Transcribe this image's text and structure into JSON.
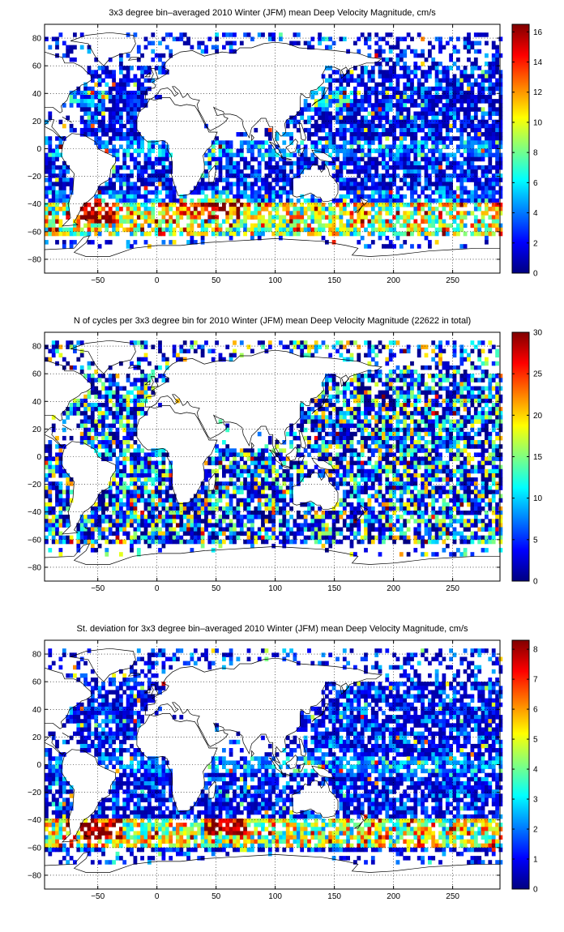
{
  "chart_data": [
    {
      "type": "heatmap",
      "title": "3x3 degree bin–averaged 2010 Winter (JFM) mean Deep Velocity Magnitude, cm/s",
      "xlim": [
        -95,
        290
      ],
      "ylim": [
        -90,
        90
      ],
      "x_ticks": [
        -50,
        0,
        50,
        100,
        150,
        200,
        250
      ],
      "y_ticks": [
        80,
        60,
        40,
        20,
        0,
        -20,
        -40,
        -60,
        -80
      ],
      "grid": true,
      "colormap": "jet",
      "colorbar": {
        "min": 0,
        "max": 16.5,
        "ticks": [
          0,
          2,
          4,
          6,
          8,
          10,
          12,
          14,
          16
        ]
      },
      "bin_size_deg": 3,
      "basemap": "world coastlines",
      "pattern": "velocity"
    },
    {
      "type": "heatmap",
      "title": "N of cycles per 3x3 degree bin for 2010 Winter (JFM) mean Deep Velocity Magnitude (22622 in total)",
      "xlim": [
        -95,
        290
      ],
      "ylim": [
        -90,
        90
      ],
      "x_ticks": [
        -50,
        0,
        50,
        100,
        150,
        200,
        250
      ],
      "y_ticks": [
        80,
        60,
        40,
        20,
        0,
        -20,
        -40,
        -60,
        -80
      ],
      "grid": true,
      "colormap": "jet",
      "colorbar": {
        "min": 0,
        "max": 30,
        "ticks": [
          0,
          5,
          10,
          15,
          20,
          25,
          30
        ]
      },
      "bin_size_deg": 3,
      "basemap": "world coastlines",
      "pattern": "counts"
    },
    {
      "type": "heatmap",
      "title": "St. deviation for 3x3 degree bin–averaged 2010 Winter (JFM) mean Deep Velocity Magnitude, cm/s",
      "xlim": [
        -95,
        290
      ],
      "ylim": [
        -90,
        90
      ],
      "x_ticks": [
        -50,
        0,
        50,
        100,
        150,
        200,
        250
      ],
      "y_ticks": [
        80,
        60,
        40,
        20,
        0,
        -20,
        -40,
        -60,
        -80
      ],
      "grid": true,
      "colormap": "jet",
      "colorbar": {
        "min": 0,
        "max": 8.3,
        "ticks": [
          0,
          1,
          2,
          3,
          4,
          5,
          6,
          7,
          8
        ]
      },
      "bin_size_deg": 3,
      "basemap": "world coastlines",
      "pattern": "stdev"
    }
  ]
}
